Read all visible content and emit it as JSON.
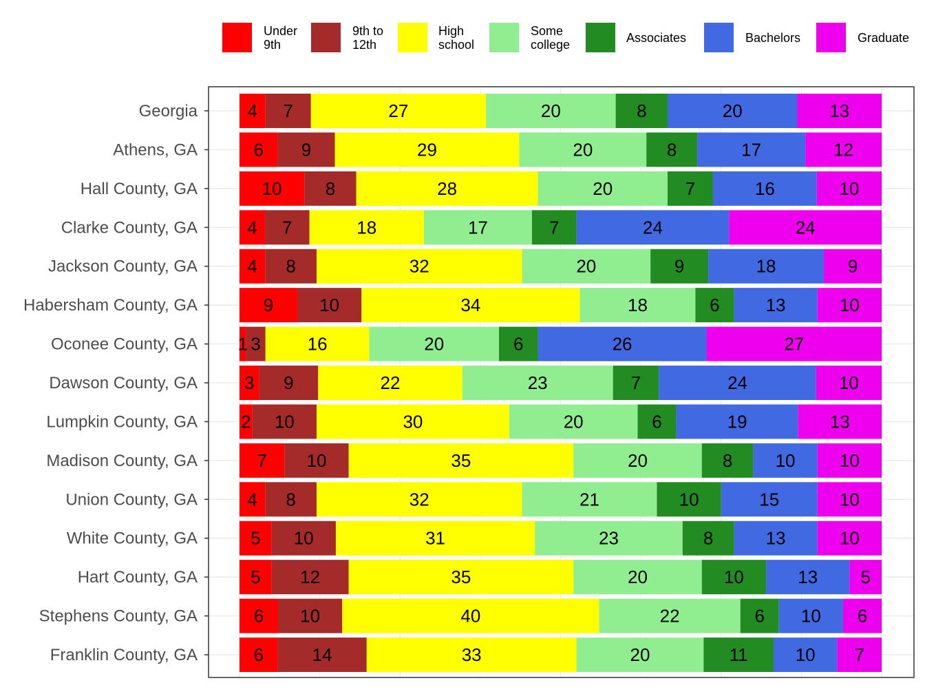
{
  "chart_data": {
    "type": "bar",
    "orientation": "horizontal",
    "stacked": true,
    "title": "",
    "xlabel": "",
    "ylabel": "",
    "xlim": [
      0,
      100
    ],
    "grid": true,
    "legend_position": "top",
    "categories": [
      "Georgia",
      "Athens, GA",
      "Hall County, GA",
      "Clarke County, GA",
      "Jackson County, GA",
      "Habersham County, GA",
      "Oconee County, GA",
      "Dawson County, GA",
      "Lumpkin County, GA",
      "Madison County, GA",
      "Union County, GA",
      "White County, GA",
      "Hart County, GA",
      "Stephens County, GA",
      "Franklin County, GA"
    ],
    "series": [
      {
        "name": "Under 9th",
        "legend_lines": [
          "Under",
          "9th"
        ],
        "color": "#ff0000",
        "values": [
          4,
          6,
          10,
          4,
          4,
          9,
          1,
          3,
          2,
          7,
          4,
          5,
          5,
          6,
          6
        ]
      },
      {
        "name": "9th to 12th",
        "legend_lines": [
          "9th to",
          "12th"
        ],
        "color": "#a52a2a",
        "values": [
          7,
          9,
          8,
          7,
          8,
          10,
          3,
          9,
          10,
          10,
          8,
          10,
          12,
          10,
          14
        ]
      },
      {
        "name": "High school",
        "legend_lines": [
          "High",
          "school"
        ],
        "color": "#ffff00",
        "values": [
          27,
          29,
          28,
          18,
          32,
          34,
          16,
          22,
          30,
          35,
          32,
          31,
          35,
          40,
          33
        ]
      },
      {
        "name": "Some college",
        "legend_lines": [
          "Some",
          "college"
        ],
        "color": "#90ee90",
        "values": [
          20,
          20,
          20,
          17,
          20,
          18,
          20,
          23,
          20,
          20,
          21,
          23,
          20,
          22,
          20
        ]
      },
      {
        "name": "Associates",
        "legend_lines": [
          "Associates"
        ],
        "color": "#228b22",
        "values": [
          8,
          8,
          7,
          7,
          9,
          6,
          6,
          7,
          6,
          8,
          10,
          8,
          10,
          6,
          11
        ]
      },
      {
        "name": "Bachelors",
        "legend_lines": [
          "Bachelors"
        ],
        "color": "#4169e1",
        "values": [
          20,
          17,
          16,
          24,
          18,
          13,
          26,
          24,
          19,
          10,
          15,
          13,
          13,
          10,
          10
        ]
      },
      {
        "name": "Graduate",
        "legend_lines": [
          "Graduate"
        ],
        "color": "#ee00ee",
        "values": [
          13,
          12,
          10,
          24,
          9,
          10,
          27,
          10,
          13,
          10,
          10,
          10,
          5,
          6,
          7
        ]
      }
    ]
  }
}
